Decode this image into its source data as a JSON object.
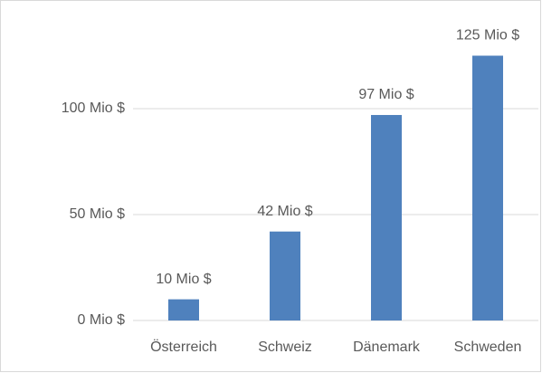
{
  "chart_data": {
    "type": "bar",
    "categories": [
      "Österreich",
      "Schweiz",
      "Dänemark",
      "Schweden"
    ],
    "values": [
      10,
      42,
      97,
      125
    ],
    "value_labels": [
      "10 Mio $",
      "42 Mio $",
      "97 Mio $",
      "125 Mio $"
    ],
    "color": "#4f81bd",
    "ylim": [
      0,
      150
    ],
    "yticks": [
      {
        "value": 0,
        "label": "0 Mio $"
      },
      {
        "value": 50,
        "label": "50 Mio $"
      },
      {
        "value": 100,
        "label": "100 Mio $"
      }
    ],
    "grid": true
  }
}
